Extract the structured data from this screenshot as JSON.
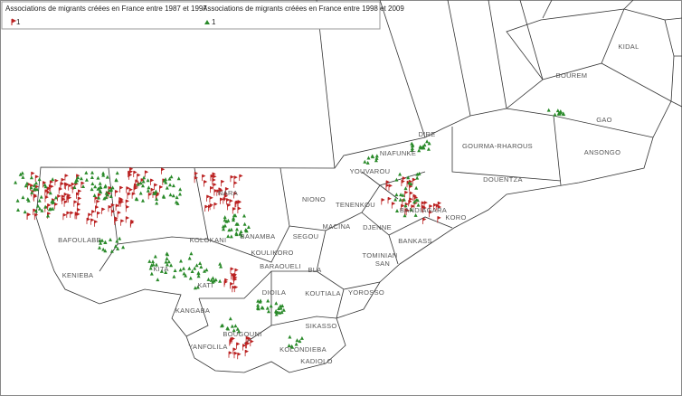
{
  "legend": [
    {
      "title": "Associations de migrants créées en France entre 1987 et 1997",
      "label": "1"
    },
    {
      "title": "Associations de migrants créées en France entre 1998 et 2009",
      "label": "1"
    }
  ],
  "regions": [
    "KIDAL",
    "BOUREM",
    "GAO",
    "ANSONGO",
    "GOURMA-RHAROUS",
    "DOUENTZA",
    "DIRE",
    "NIAFUNKE",
    "YOUVAROU",
    "NIONO",
    "TENENKOU",
    "MACINA",
    "DJENNE",
    "BANDIAGARA",
    "KORO",
    "BANKASS",
    "TOMINIAN",
    "SAN",
    "SEGOU",
    "BLA",
    "BARAOUELI",
    "KOULIKORO",
    "BANAMBA",
    "KOLOKANI",
    "NARA",
    "BAFOULABE",
    "KENIEBA",
    "KITA",
    "KATI",
    "KANGABA",
    "DIOILA",
    "KOUTIALA",
    "YOROSSO",
    "SIKASSO",
    "BOUGOUNI",
    "KOLONDIEBA",
    "YANFOLILA",
    "KADIOLO"
  ]
}
